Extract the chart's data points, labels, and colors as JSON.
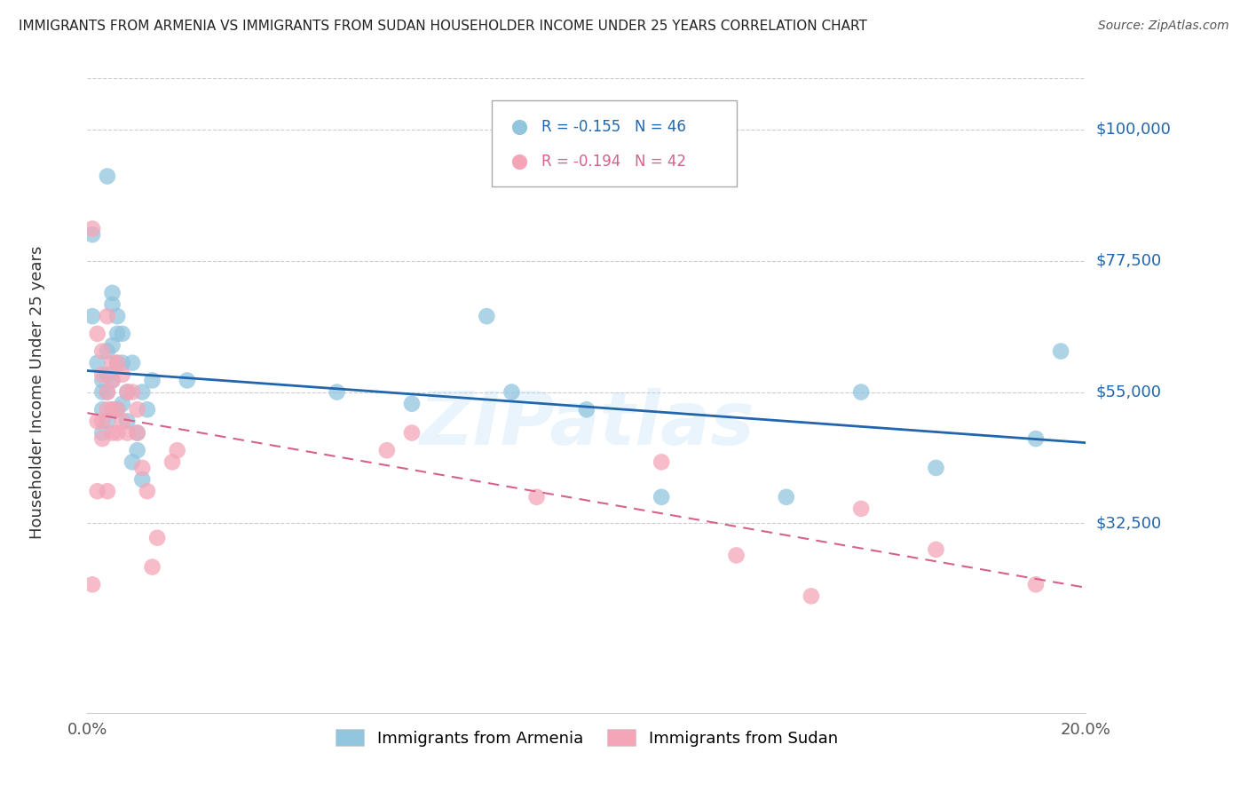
{
  "title": "IMMIGRANTS FROM ARMENIA VS IMMIGRANTS FROM SUDAN HOUSEHOLDER INCOME UNDER 25 YEARS CORRELATION CHART",
  "source": "Source: ZipAtlas.com",
  "ylabel": "Householder Income Under 25 years",
  "xlim": [
    0.0,
    0.2
  ],
  "ylim": [
    0,
    110000
  ],
  "yticks": [
    0,
    32500,
    55000,
    77500,
    100000
  ],
  "ytick_labels": [
    "",
    "$32,500",
    "$55,000",
    "$77,500",
    "$100,000"
  ],
  "xticks": [
    0.0,
    0.05,
    0.1,
    0.15,
    0.2
  ],
  "xtick_labels": [
    "0.0%",
    "",
    "",
    "",
    "20.0%"
  ],
  "legend_armenia": "R = -0.155   N = 46",
  "legend_sudan": "R = -0.194   N = 42",
  "armenia_color": "#92C5DE",
  "sudan_color": "#F4A6B8",
  "armenia_line_color": "#2166AC",
  "sudan_line_color": "#D6628A",
  "watermark": "ZIPatlas",
  "armenia_x": [
    0.001,
    0.001,
    0.002,
    0.003,
    0.003,
    0.003,
    0.003,
    0.004,
    0.004,
    0.004,
    0.004,
    0.004,
    0.005,
    0.005,
    0.005,
    0.005,
    0.005,
    0.006,
    0.006,
    0.006,
    0.006,
    0.007,
    0.007,
    0.007,
    0.008,
    0.008,
    0.009,
    0.009,
    0.01,
    0.01,
    0.011,
    0.011,
    0.012,
    0.013,
    0.02,
    0.05,
    0.065,
    0.08,
    0.085,
    0.1,
    0.115,
    0.14,
    0.155,
    0.17,
    0.19,
    0.195
  ],
  "armenia_y": [
    82000,
    68000,
    60000,
    57000,
    55000,
    52000,
    48000,
    92000,
    62000,
    58000,
    55000,
    50000,
    72000,
    70000,
    63000,
    57000,
    52000,
    68000,
    65000,
    60000,
    52000,
    65000,
    60000,
    53000,
    55000,
    50000,
    60000,
    43000,
    48000,
    45000,
    55000,
    40000,
    52000,
    57000,
    57000,
    55000,
    53000,
    68000,
    55000,
    52000,
    37000,
    37000,
    55000,
    42000,
    47000,
    62000
  ],
  "sudan_x": [
    0.001,
    0.001,
    0.002,
    0.002,
    0.002,
    0.003,
    0.003,
    0.003,
    0.003,
    0.004,
    0.004,
    0.004,
    0.004,
    0.005,
    0.005,
    0.005,
    0.005,
    0.006,
    0.006,
    0.006,
    0.007,
    0.007,
    0.008,
    0.008,
    0.009,
    0.01,
    0.01,
    0.011,
    0.012,
    0.013,
    0.014,
    0.017,
    0.018,
    0.06,
    0.065,
    0.09,
    0.115,
    0.13,
    0.145,
    0.155,
    0.17,
    0.19
  ],
  "sudan_y": [
    83000,
    22000,
    65000,
    50000,
    38000,
    62000,
    58000,
    50000,
    47000,
    68000,
    55000,
    52000,
    38000,
    60000,
    57000,
    52000,
    48000,
    60000,
    52000,
    48000,
    58000,
    50000,
    55000,
    48000,
    55000,
    52000,
    48000,
    42000,
    38000,
    25000,
    30000,
    43000,
    45000,
    45000,
    48000,
    37000,
    43000,
    27000,
    20000,
    35000,
    28000,
    22000
  ]
}
